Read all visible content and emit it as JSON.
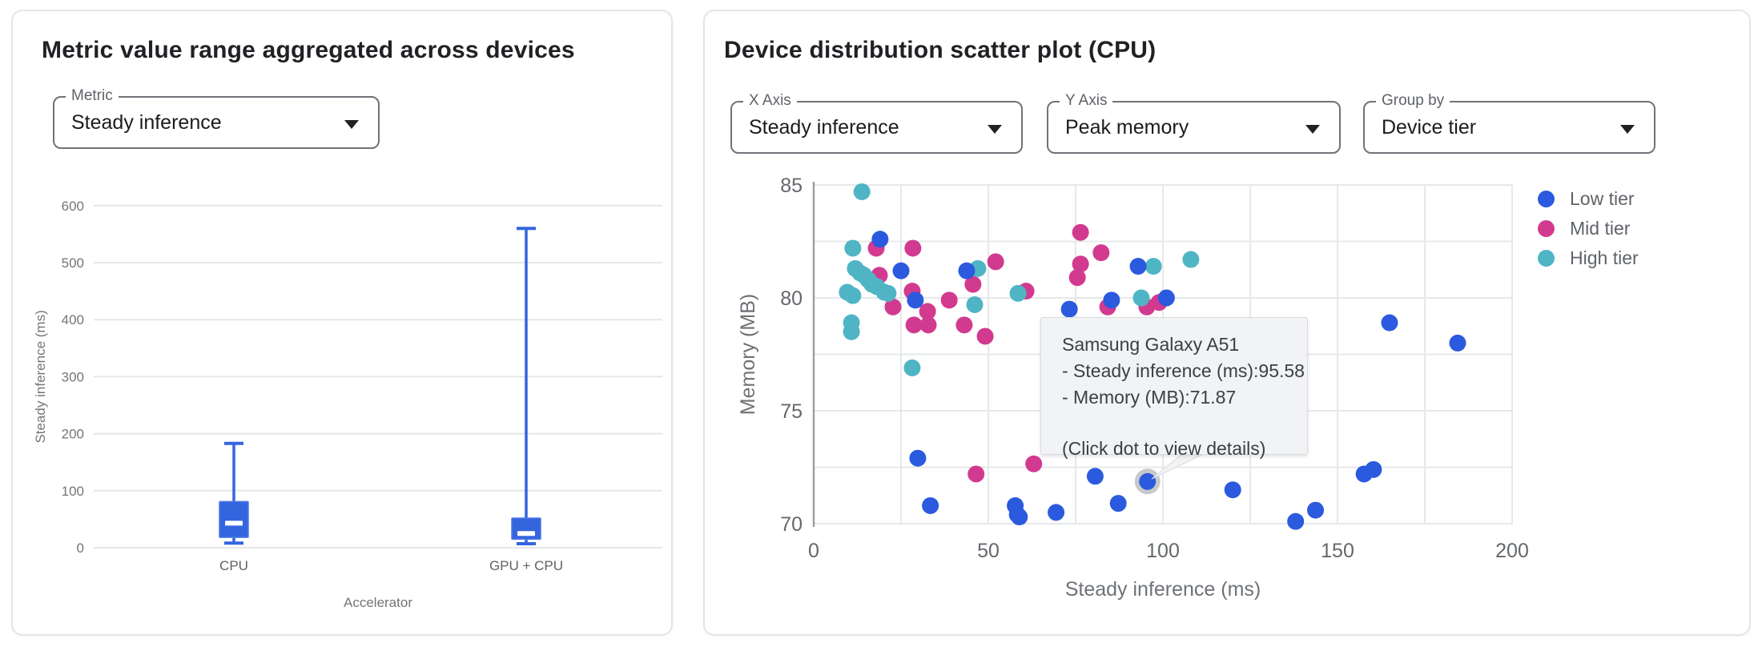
{
  "left_panel": {
    "title": "Metric value range aggregated across devices",
    "metric_select": {
      "label": "Metric",
      "value": "Steady inference"
    }
  },
  "right_panel": {
    "title": "Device distribution scatter plot (CPU)",
    "x_axis_select": {
      "label": "X Axis",
      "value": "Steady inference"
    },
    "y_axis_select": {
      "label": "Y Axis",
      "value": "Peak memory"
    },
    "group_by_select": {
      "label": "Group by",
      "value": "Device tier"
    },
    "legend": [
      {
        "label": "Low tier",
        "color": "#2B5ADF"
      },
      {
        "label": "Mid tier",
        "color": "#D23A90"
      },
      {
        "label": "High tier",
        "color": "#4FB5C5"
      }
    ],
    "tooltip": {
      "title": "Samsung Galaxy A51",
      "line1": "- Steady inference (ms):95.58",
      "line2": "- Memory (MB):71.87",
      "footer": "(Click dot to view details)"
    }
  },
  "chart_data": [
    {
      "type": "box",
      "title": "Metric value range aggregated across devices",
      "xlabel": "Accelerator",
      "ylabel": "Steady inference (ms)",
      "ylim": [
        0,
        600
      ],
      "yticks": [
        0,
        100,
        200,
        300,
        400,
        500,
        600
      ],
      "grid": "horizontal-only",
      "categories": [
        "CPU",
        "GPU + CPU"
      ],
      "series": [
        {
          "name": "CPU",
          "min": 8,
          "q1": 18,
          "median": 43,
          "q3": 81,
          "max": 183
        },
        {
          "name": "GPU + CPU",
          "min": 7,
          "q1": 15,
          "median": 25,
          "q3": 52,
          "max": 560
        }
      ],
      "box_color": "#3365DF",
      "box_stroke": "#4D79E6",
      "median_color": "#FFFFFF"
    },
    {
      "type": "scatter",
      "title": "Device distribution scatter plot (CPU)",
      "xlabel": "Steady inference (ms)",
      "ylabel": "Memory (MB)",
      "xlim": [
        0,
        200
      ],
      "ylim": [
        70,
        85
      ],
      "xticks": [
        0,
        50,
        100,
        150,
        200
      ],
      "yticks": [
        70,
        75,
        80,
        85
      ],
      "grid": true,
      "legend_position": "right",
      "series": [
        {
          "name": "Low tier",
          "color": "#2B5ADF",
          "points": [
            [
              19.0,
              82.6
            ],
            [
              25.0,
              81.2
            ],
            [
              43.8,
              81.2
            ],
            [
              29.1,
              79.9
            ],
            [
              92.9,
              81.4
            ],
            [
              73.2,
              79.5
            ],
            [
              85.3,
              79.9
            ],
            [
              101.0,
              80.0
            ],
            [
              164.9,
              78.9
            ],
            [
              184.4,
              78.0
            ],
            [
              29.8,
              72.9
            ],
            [
              33.4,
              70.8
            ],
            [
              57.7,
              70.8
            ],
            [
              58.3,
              70.4
            ],
            [
              58.9,
              70.3
            ],
            [
              69.4,
              70.5
            ],
            [
              80.6,
              72.1
            ],
            [
              87.2,
              70.9
            ],
            [
              95.58,
              71.87
            ],
            [
              120.0,
              71.5
            ],
            [
              138.0,
              70.1
            ],
            [
              143.7,
              70.6
            ],
            [
              157.6,
              72.2
            ],
            [
              160.3,
              72.4
            ]
          ]
        },
        {
          "name": "Mid tier",
          "color": "#D23A90",
          "points": [
            [
              17.9,
              82.2
            ],
            [
              28.4,
              82.2
            ],
            [
              18.8,
              81.0
            ],
            [
              22.7,
              79.6
            ],
            [
              28.2,
              80.3
            ],
            [
              32.6,
              79.4
            ],
            [
              28.7,
              78.8
            ],
            [
              32.8,
              78.8
            ],
            [
              38.8,
              79.9
            ],
            [
              43.1,
              78.8
            ],
            [
              45.6,
              80.6
            ],
            [
              49.1,
              78.3
            ],
            [
              52.1,
              81.6
            ],
            [
              60.8,
              80.3
            ],
            [
              76.4,
              82.9
            ],
            [
              82.3,
              82.0
            ],
            [
              76.4,
              81.5
            ],
            [
              75.5,
              80.9
            ],
            [
              84.2,
              79.6
            ],
            [
              95.4,
              79.6
            ],
            [
              98.9,
              79.8
            ],
            [
              46.5,
              72.2
            ],
            [
              63.0,
              72.65
            ]
          ]
        },
        {
          "name": "High tier",
          "color": "#4FB5C5",
          "points": [
            [
              13.8,
              84.7
            ],
            [
              11.2,
              82.2
            ],
            [
              11.9,
              81.3
            ],
            [
              13.3,
              81.1
            ],
            [
              14.4,
              81.0
            ],
            [
              15.6,
              80.8
            ],
            [
              16.7,
              80.6
            ],
            [
              18.1,
              80.5
            ],
            [
              20.2,
              80.25
            ],
            [
              9.6,
              80.25
            ],
            [
              11.2,
              80.1
            ],
            [
              21.3,
              80.2
            ],
            [
              10.8,
              78.9
            ],
            [
              10.8,
              78.5
            ],
            [
              28.2,
              76.9
            ],
            [
              47.0,
              81.3
            ],
            [
              46.1,
              79.7
            ],
            [
              58.5,
              80.2
            ],
            [
              93.8,
              80.0
            ],
            [
              97.3,
              81.4
            ],
            [
              108.0,
              81.7
            ]
          ]
        }
      ],
      "highlighted_point": {
        "series": "Low tier",
        "x": 95.58,
        "y": 71.87,
        "device": "Samsung Galaxy A51"
      }
    }
  ]
}
